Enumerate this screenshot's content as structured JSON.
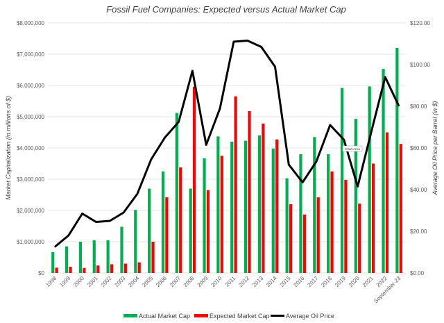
{
  "chart_data": {
    "type": "bar",
    "title": "Fossil Fuel Companies: Expected versus Actual Market Cap",
    "ylabel": "Market Capitalization (in millions of $)",
    "y2label": "Average Oil Price per Barrel (in $)",
    "ylim": [
      0,
      8000000
    ],
    "y2lim": [
      0,
      120
    ],
    "yticks": [
      "$0",
      "$1,000,000",
      "$2,000,000",
      "$3,000,000",
      "$4,000,000",
      "$5,000,000",
      "$6,000,000",
      "$7,000,000",
      "$8,000,000"
    ],
    "y2ticks": [
      "$0.00",
      "$20.00",
      "$40.00",
      "$60.00",
      "$80.00",
      "$100.00",
      "$120.00"
    ],
    "grid": true,
    "legend_position": "bottom",
    "categories": [
      "1998",
      "1999",
      "2000",
      "2001",
      "2002",
      "2003",
      "2004",
      "2005",
      "2006",
      "2007",
      "2008",
      "2009",
      "2010",
      "2011",
      "2012",
      "2013",
      "2014",
      "2015",
      "2016",
      "2017",
      "2018",
      "2019",
      "2020",
      "2021",
      "2022",
      "September-23"
    ],
    "series": [
      {
        "name": "Actual Market Cap",
        "kind": "bar",
        "axis": "left",
        "color": "#00B050",
        "values": [
          670000,
          850000,
          1000000,
          1050000,
          1050000,
          1480000,
          2020000,
          2700000,
          3250000,
          5120000,
          2700000,
          3670000,
          4370000,
          4200000,
          4230000,
          4400000,
          3980000,
          3030000,
          3800000,
          4350000,
          3800000,
          5920000,
          4930000,
          5970000,
          6530000,
          7200000
        ]
      },
      {
        "name": "Expected Market Cap",
        "kind": "bar",
        "axis": "left",
        "color": "#FF0000",
        "values": [
          170000,
          200000,
          160000,
          240000,
          280000,
          300000,
          340000,
          1000000,
          2420000,
          3380000,
          5960000,
          2650000,
          3750000,
          5650000,
          5180000,
          4780000,
          4270000,
          2200000,
          1870000,
          2420000,
          3250000,
          2980000,
          2220000,
          3500000,
          4500000,
          4130000
        ]
      },
      {
        "name": "Average Oil Price",
        "kind": "line",
        "axis": "right",
        "color": "#000000",
        "values": [
          12.5,
          18,
          28.5,
          24.5,
          25,
          29,
          38,
          54.5,
          65,
          72.5,
          97,
          61.5,
          79,
          111,
          111.5,
          108.5,
          99,
          52,
          43.5,
          53.5,
          71,
          64,
          41.5,
          68,
          94,
          80
        ]
      }
    ]
  },
  "tooltip": "Chart Area"
}
